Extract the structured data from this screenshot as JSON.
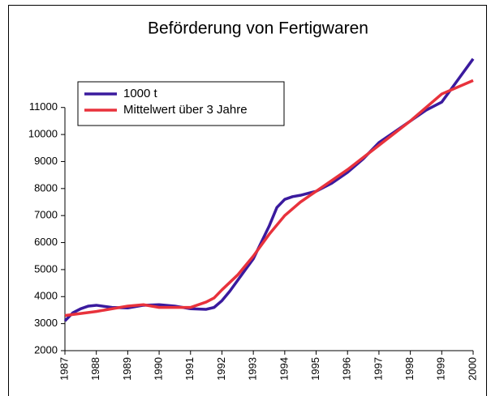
{
  "chart_data": {
    "type": "line",
    "title": "Beförderung von Fertigwaren",
    "xlim": [
      1987,
      2000
    ],
    "xticks": [
      1987,
      1988,
      1989,
      1990,
      1991,
      1992,
      1993,
      1994,
      1995,
      1996,
      1997,
      1998,
      1999,
      2000
    ],
    "ylim": [
      2000,
      13000
    ],
    "yticks": [
      2000,
      3000,
      4000,
      5000,
      6000,
      7000,
      8000,
      9000,
      10000,
      11000
    ],
    "legend": "upper left",
    "series": [
      {
        "name": "1000 t",
        "color": "#3a1a9e",
        "x": [
          1987,
          1987.25,
          1987.5,
          1987.75,
          1988,
          1988.5,
          1989,
          1989.5,
          1990,
          1990.5,
          1991,
          1991.5,
          1991.75,
          1992,
          1992.25,
          1992.5,
          1992.75,
          1993,
          1993.25,
          1993.5,
          1993.75,
          1994,
          1994.25,
          1994.5,
          1995,
          1995.5,
          1996,
          1996.5,
          1997,
          1997.5,
          1998,
          1998.5,
          1999,
          1999.5,
          2000
        ],
        "values": [
          3100,
          3400,
          3550,
          3650,
          3680,
          3600,
          3580,
          3680,
          3700,
          3650,
          3550,
          3530,
          3600,
          3850,
          4200,
          4600,
          5000,
          5400,
          6000,
          6600,
          7300,
          7600,
          7700,
          7750,
          7900,
          8200,
          8600,
          9100,
          9700,
          10100,
          10500,
          10900,
          11200,
          12000,
          12800
        ]
      },
      {
        "name": "Mittelwert über 3 Jahre",
        "color": "#e8323c",
        "x": [
          1987,
          1988,
          1989,
          1989.5,
          1990,
          1991,
          1991.5,
          1991.75,
          1992,
          1992.5,
          1993,
          1993.5,
          1994,
          1994.5,
          1995,
          1996,
          1997,
          1998,
          1999,
          2000
        ],
        "values": [
          3300,
          3450,
          3650,
          3700,
          3600,
          3600,
          3800,
          3950,
          4250,
          4800,
          5500,
          6300,
          7000,
          7500,
          7900,
          8700,
          9600,
          10500,
          11500,
          12000
        ]
      }
    ]
  }
}
